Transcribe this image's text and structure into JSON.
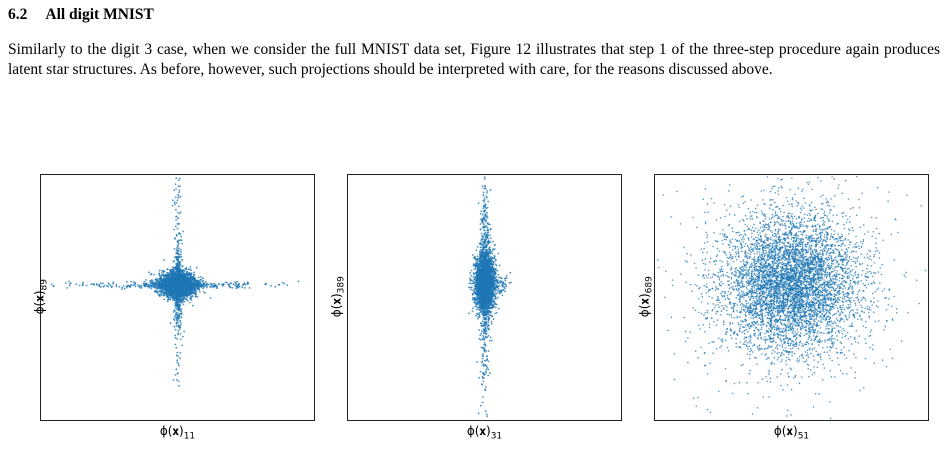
{
  "section": {
    "number": "6.2",
    "title": "All digit MNIST"
  },
  "paragraph": "Similarly to the digit 3 case, when we consider the full MNIST data set, Figure 12 illustrates that step 1 of the three-step procedure again produces latent star structures. As before, however, such projections should be interpreted with care, for the reasons discussed above.",
  "colors": {
    "points": "#1f77b4",
    "frame": "#222222"
  },
  "chart_data": [
    {
      "type": "scatter",
      "title": "",
      "xlabel": "φ(x)_11",
      "ylabel": "φ(x)_89",
      "xlabel_main": "ϕ(𝐱)",
      "xlabel_sub": "11",
      "ylabel_main": "ϕ(𝐱)",
      "ylabel_sub": "89",
      "shape": "cross-star",
      "ticks": false,
      "grid": false
    },
    {
      "type": "scatter",
      "title": "",
      "xlabel": "φ(x)_31",
      "ylabel": "φ(x)_389",
      "xlabel_main": "ϕ(𝐱)",
      "xlabel_sub": "31",
      "ylabel_main": "ϕ(𝐱)",
      "ylabel_sub": "389",
      "shape": "vertical-spindle",
      "ticks": false,
      "grid": false
    },
    {
      "type": "scatter",
      "title": "",
      "xlabel": "φ(x)_51",
      "ylabel": "φ(x)_689",
      "xlabel_main": "ϕ(𝐱)",
      "xlabel_sub": "51",
      "ylabel_main": "ϕ(𝐱)",
      "ylabel_sub": "689",
      "shape": "gaussian-blob",
      "ticks": false,
      "grid": false
    }
  ]
}
